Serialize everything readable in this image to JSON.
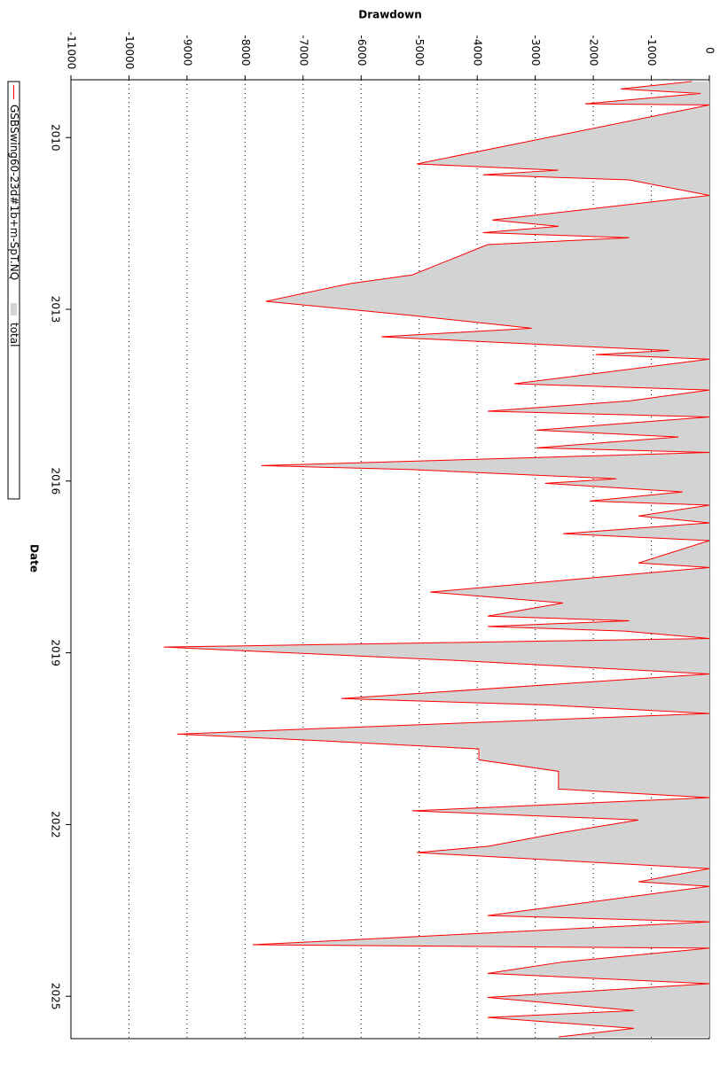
{
  "chart_data": {
    "type": "line",
    "y_label": "Drawdown",
    "x_label": "Date",
    "x": [
      2009.02,
      2009.15,
      2009.23,
      2009.41,
      2009.43,
      2010.46,
      2010.57,
      2010.65,
      2010.74,
      2011.01,
      2011.44,
      2011.55,
      2011.66,
      2011.75,
      2011.87,
      2012.4,
      2012.55,
      2012.86,
      2013.1,
      2013.33,
      2013.48,
      2013.72,
      2013.79,
      2013.87,
      2014.3,
      2014.41,
      2014.6,
      2014.78,
      2014.88,
      2015.11,
      2015.23,
      2015.42,
      2015.5,
      2015.73,
      2015.8,
      2015.96,
      2016.04,
      2016.19,
      2016.35,
      2016.42,
      2016.61,
      2016.73,
      2016.92,
      2017.04,
      2017.43,
      2017.51,
      2017.94,
      2018.13,
      2018.36,
      2018.44,
      2018.54,
      2018.62,
      2018.75,
      2018.9,
      2019.13,
      2019.37,
      2019.8,
      2019.91,
      2020.06,
      2020.42,
      2020.53,
      2020.68,
      2020.87,
      2021.07,
      2021.38,
      2021.53,
      2021.76,
      2021.92,
      2022.15,
      2022.38,
      2022.49,
      2022.77,
      2023.0,
      2023.08,
      2023.59,
      2023.7,
      2024.1,
      2024.16,
      2024.4,
      2024.6,
      2024.78,
      2025.02,
      2025.25,
      2025.37,
      2025.56,
      2025.71
    ],
    "series": [
      {
        "name": "total",
        "color": "#d3d3d3",
        "fill": true,
        "values": [
          -300,
          -1530,
          -150,
          -2140,
          0,
          -5000,
          -2600,
          -3850,
          -1380,
          0,
          -3700,
          -2600,
          -3850,
          -1380,
          -3800,
          -5100,
          -6150,
          -7600,
          -5200,
          -3060,
          -5600,
          -690,
          -1960,
          0,
          -3300,
          0,
          -1380,
          -3800,
          0,
          -2950,
          -535,
          -2950,
          0,
          -7680,
          -5100,
          -1600,
          -2800,
          -460,
          -2060,
          0,
          -1220,
          0,
          -2500,
          0,
          -1220,
          0,
          -4780,
          -2500,
          -3800,
          -1380,
          -3800,
          -1460,
          0,
          -9350,
          -4400,
          0,
          -6300,
          -2800,
          0,
          -9100,
          -6750,
          -3950,
          -3950,
          -2600,
          -2600,
          0,
          -5100,
          -1220,
          -2600,
          -3800,
          -5000,
          0,
          -1220,
          0,
          -3800,
          0,
          -7800,
          0,
          -2500,
          -3800,
          0,
          -3800,
          -1300,
          -3800,
          -1300,
          -2600
        ]
      },
      {
        "name": "GSBSwing60-23d#1b+m-SpT.NQ",
        "color": "#ff0000",
        "fill": false,
        "values": [
          -300,
          -1530,
          -150,
          -2140,
          0,
          -5040,
          -2600,
          -3900,
          -1380,
          0,
          -3740,
          -2600,
          -3900,
          -1380,
          -3820,
          -5120,
          -6190,
          -7640,
          -5200,
          -3060,
          -5650,
          -690,
          -1960,
          0,
          -3360,
          0,
          -1380,
          -3820,
          0,
          -2980,
          -535,
          -2980,
          0,
          -7720,
          -5120,
          -1600,
          -2830,
          -460,
          -2060,
          0,
          -1220,
          0,
          -2520,
          0,
          -1220,
          0,
          -4810,
          -2520,
          -3820,
          -1380,
          -3820,
          -1460,
          0,
          -9400,
          -4430,
          0,
          -6340,
          -2830,
          0,
          -9170,
          -6800,
          -3970,
          -3970,
          -2600,
          -2600,
          0,
          -5120,
          -1220,
          -2600,
          -3820,
          -5040,
          0,
          -1220,
          0,
          -3820,
          0,
          -7870,
          0,
          -2520,
          -3820,
          0,
          -3820,
          -1300,
          -3820,
          -1300,
          -2600
        ]
      }
    ],
    "xlim": [
      2008.99,
      2025.74
    ],
    "xticks": [
      2010,
      2013,
      2016,
      2019,
      2022,
      2025
    ],
    "ylim": [
      -11000,
      0
    ],
    "yticks": [
      -11000,
      -10000,
      -9000,
      -8000,
      -7000,
      -6000,
      -5000,
      -4000,
      -3000,
      -2000,
      -1000,
      0
    ],
    "grid": true
  }
}
